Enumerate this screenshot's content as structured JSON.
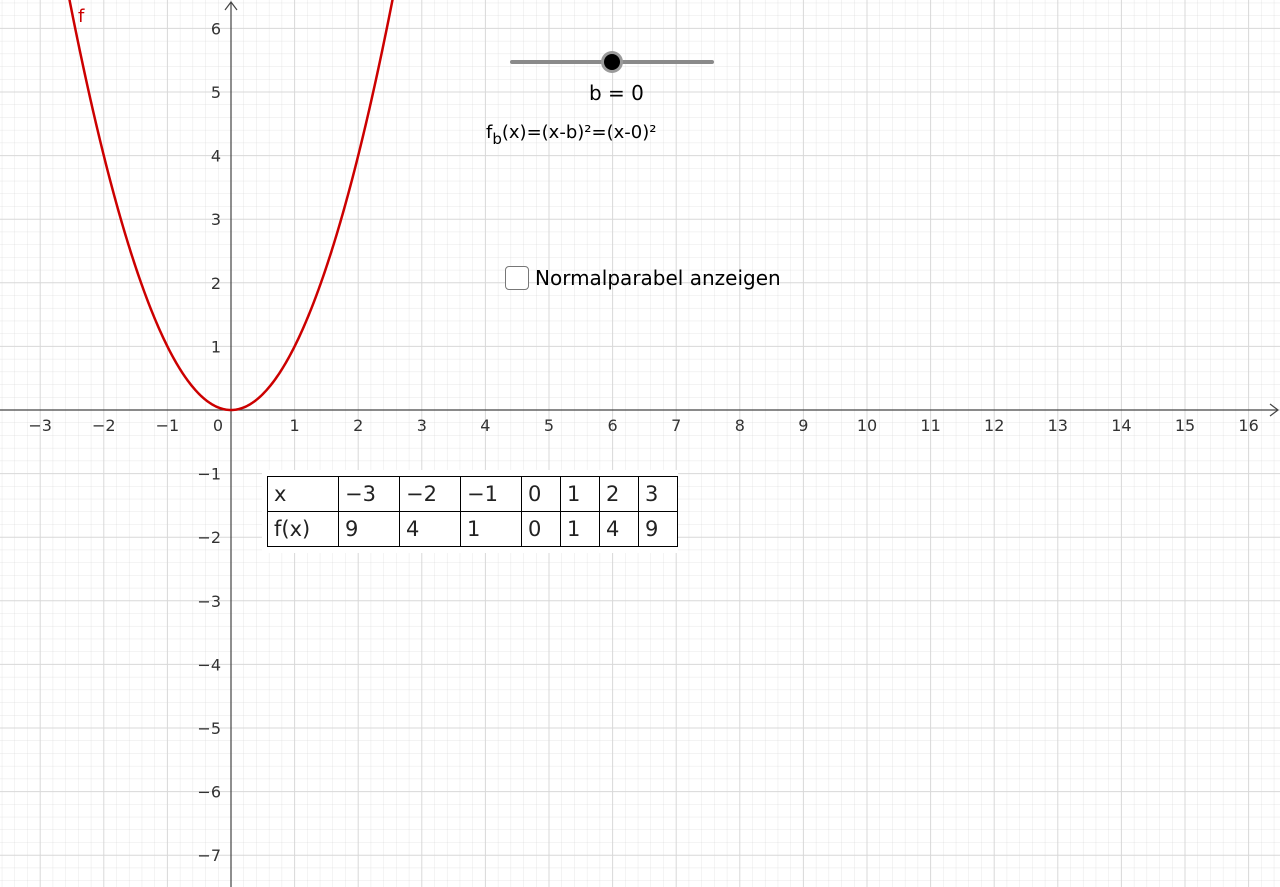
{
  "graph": {
    "function_label": "f",
    "curve_color": "#cc0000",
    "grid_color": "#d8d8d8",
    "axis_color": "#444444",
    "x_ticks": [
      "−3",
      "−2",
      "−1",
      "0",
      "1",
      "2",
      "3",
      "4",
      "5",
      "6",
      "7",
      "8",
      "9",
      "10",
      "11",
      "12",
      "13",
      "14",
      "15",
      "16"
    ],
    "y_ticks_positive": [
      "1",
      "2",
      "3",
      "4",
      "5",
      "6"
    ],
    "y_ticks_negative": [
      "−1",
      "−2",
      "−3",
      "−4",
      "−5",
      "−6",
      "−7"
    ]
  },
  "chart_data": {
    "type": "line",
    "title": "",
    "xlabel": "",
    "ylabel": "",
    "xlim": [
      -3.6,
      16.4
    ],
    "ylim": [
      -7.4,
      6.4
    ],
    "grid": true,
    "series": [
      {
        "name": "f",
        "function": "(x-0)^2",
        "x": [
          -3,
          -2,
          -1,
          0,
          1,
          2,
          3
        ],
        "y": [
          9,
          4,
          1,
          0,
          1,
          4,
          9
        ]
      }
    ]
  },
  "slider": {
    "label": "b = 0",
    "value": 0,
    "min": -3,
    "max": 3
  },
  "formula": {
    "prefix": "f",
    "subscript": "b",
    "rest": "(x)=(x-b)²=(x-0)²"
  },
  "checkbox": {
    "label": "Normalparabel anzeigen",
    "checked": false
  },
  "table": {
    "row_x": [
      "x",
      "−3",
      "−2",
      "−1",
      "0",
      "1",
      "2",
      "3"
    ],
    "row_fx": [
      "f(x)",
      "9",
      "4",
      "1",
      "0",
      "1",
      "4",
      "9"
    ]
  }
}
